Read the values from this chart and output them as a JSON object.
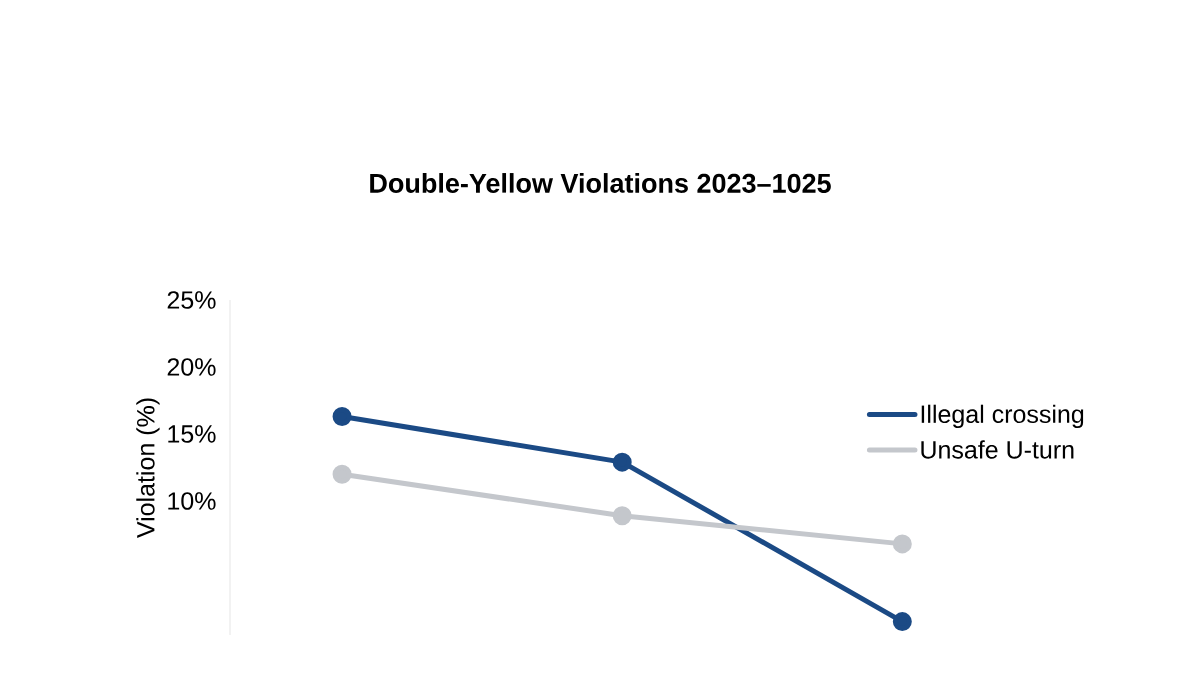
{
  "chart_data": {
    "type": "line",
    "title": "Double-Yellow Violations 2023–1025",
    "ylabel": "Violation (%)",
    "categories": [
      null,
      null,
      null
    ],
    "series": [
      {
        "name": "Illegal crossing",
        "color": "#1b4a85",
        "values": [
          16.3,
          12.9,
          1.0
        ]
      },
      {
        "name": "Unsafe U-turn",
        "color": "#c4c7cc",
        "values": [
          12.0,
          8.9,
          6.8
        ]
      }
    ],
    "ylim": [
      0,
      25
    ],
    "yticks": [
      {
        "value": 10,
        "label": "10%"
      },
      {
        "value": 15,
        "label": "15%"
      },
      {
        "value": 20,
        "label": "20%"
      },
      {
        "value": 25,
        "label": "25%"
      }
    ],
    "legend": "top right",
    "marker": "circle",
    "line_style": "solid"
  }
}
